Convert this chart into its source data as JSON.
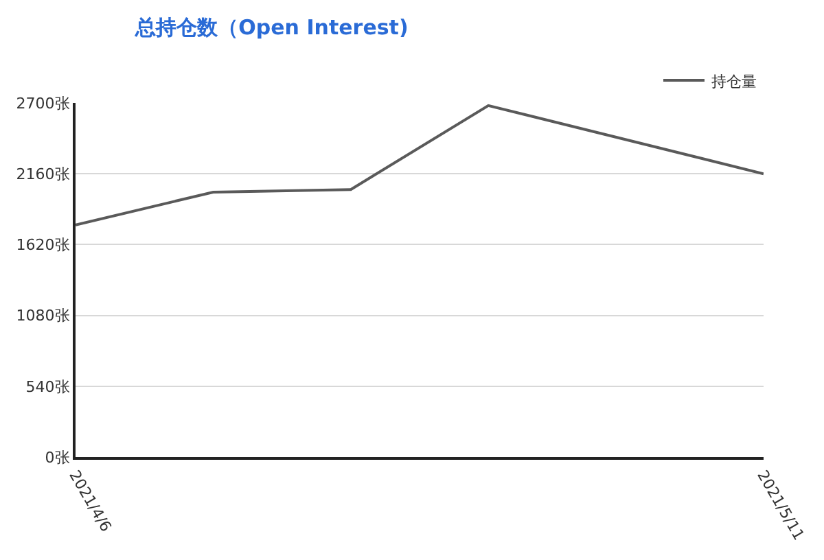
{
  "chart_data": {
    "type": "line",
    "title": "总持仓数（Open Interest)",
    "x": [
      "2021-04-06",
      "2021-04-13",
      "2021-04-20",
      "2021-04-27",
      "2021-05-11"
    ],
    "series": [
      {
        "name": "持仓量",
        "color": "#5a5a5a",
        "values": [
          1770,
          2020,
          2040,
          2680,
          2160
        ]
      }
    ],
    "xlim": [
      "2021-04-06",
      "2021-05-11"
    ],
    "xticks": [
      {
        "value": "2021-04-06",
        "label": "2021/4/6"
      },
      {
        "value": "2021-05-11",
        "label": "2021/5/11"
      }
    ],
    "ylim": [
      0,
      2700
    ],
    "yticks": [
      {
        "value": 0,
        "label": "0张"
      },
      {
        "value": 540,
        "label": "540张"
      },
      {
        "value": 1080,
        "label": "1080张"
      },
      {
        "value": 1620,
        "label": "1620张"
      },
      {
        "value": 2160,
        "label": "2160张"
      },
      {
        "value": 2700,
        "label": "2700张"
      }
    ],
    "grid": "y",
    "legend": "top right",
    "marker": "none",
    "line_style": "solid"
  }
}
